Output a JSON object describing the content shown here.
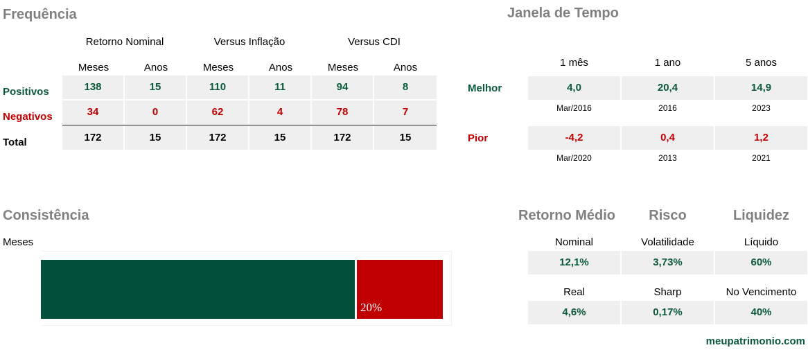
{
  "frequencia": {
    "title": "Frequência",
    "groups": [
      "Retorno Nominal",
      "Versus Inflação",
      "Versus CDI"
    ],
    "subcols": [
      "Meses",
      "Anos",
      "Meses",
      "Anos",
      "Meses",
      "Anos"
    ],
    "rows": [
      {
        "label": "Positivos",
        "values": [
          "138",
          "15",
          "110",
          "11",
          "94",
          "8"
        ]
      },
      {
        "label": "Negativos",
        "values": [
          "34",
          "0",
          "62",
          "4",
          "78",
          "7"
        ]
      },
      {
        "label": "Total",
        "values": [
          "172",
          "15",
          "172",
          "15",
          "172",
          "15"
        ]
      }
    ]
  },
  "janela": {
    "title": "Janela de Tempo",
    "cols": [
      "1 mês",
      "1 ano",
      "5 anos"
    ],
    "melhor": {
      "label": "Melhor",
      "values": [
        "4,0",
        "20,4",
        "14,9"
      ],
      "dates": [
        "Mar/2016",
        "2016",
        "2023"
      ]
    },
    "pior": {
      "label": "Pior",
      "values": [
        "-4,2",
        "0,4",
        "1,2"
      ],
      "dates": [
        "Mar/2020",
        "2013",
        "2021"
      ]
    }
  },
  "consistencia": {
    "title": "Consistência",
    "unit": "Meses",
    "positive_share": 0.8,
    "negative_share": 0.2,
    "negative_label": "20%"
  },
  "stats": {
    "headers": [
      "Retorno Médio",
      "Risco",
      "Liquidez"
    ],
    "row1": {
      "labels": [
        "Nominal",
        "Volatilidade",
        "Líquido"
      ],
      "values": [
        "12,1%",
        "3,73%",
        "60%"
      ]
    },
    "row2": {
      "labels": [
        "Real",
        "Sharp",
        "No Vencimento"
      ],
      "values": [
        "4,6%",
        "0,17%",
        "40%"
      ]
    }
  },
  "brand": "meupatrimonio.com",
  "colors": {
    "positive": "#00503a",
    "negative": "#c00000",
    "title": "#808080"
  }
}
